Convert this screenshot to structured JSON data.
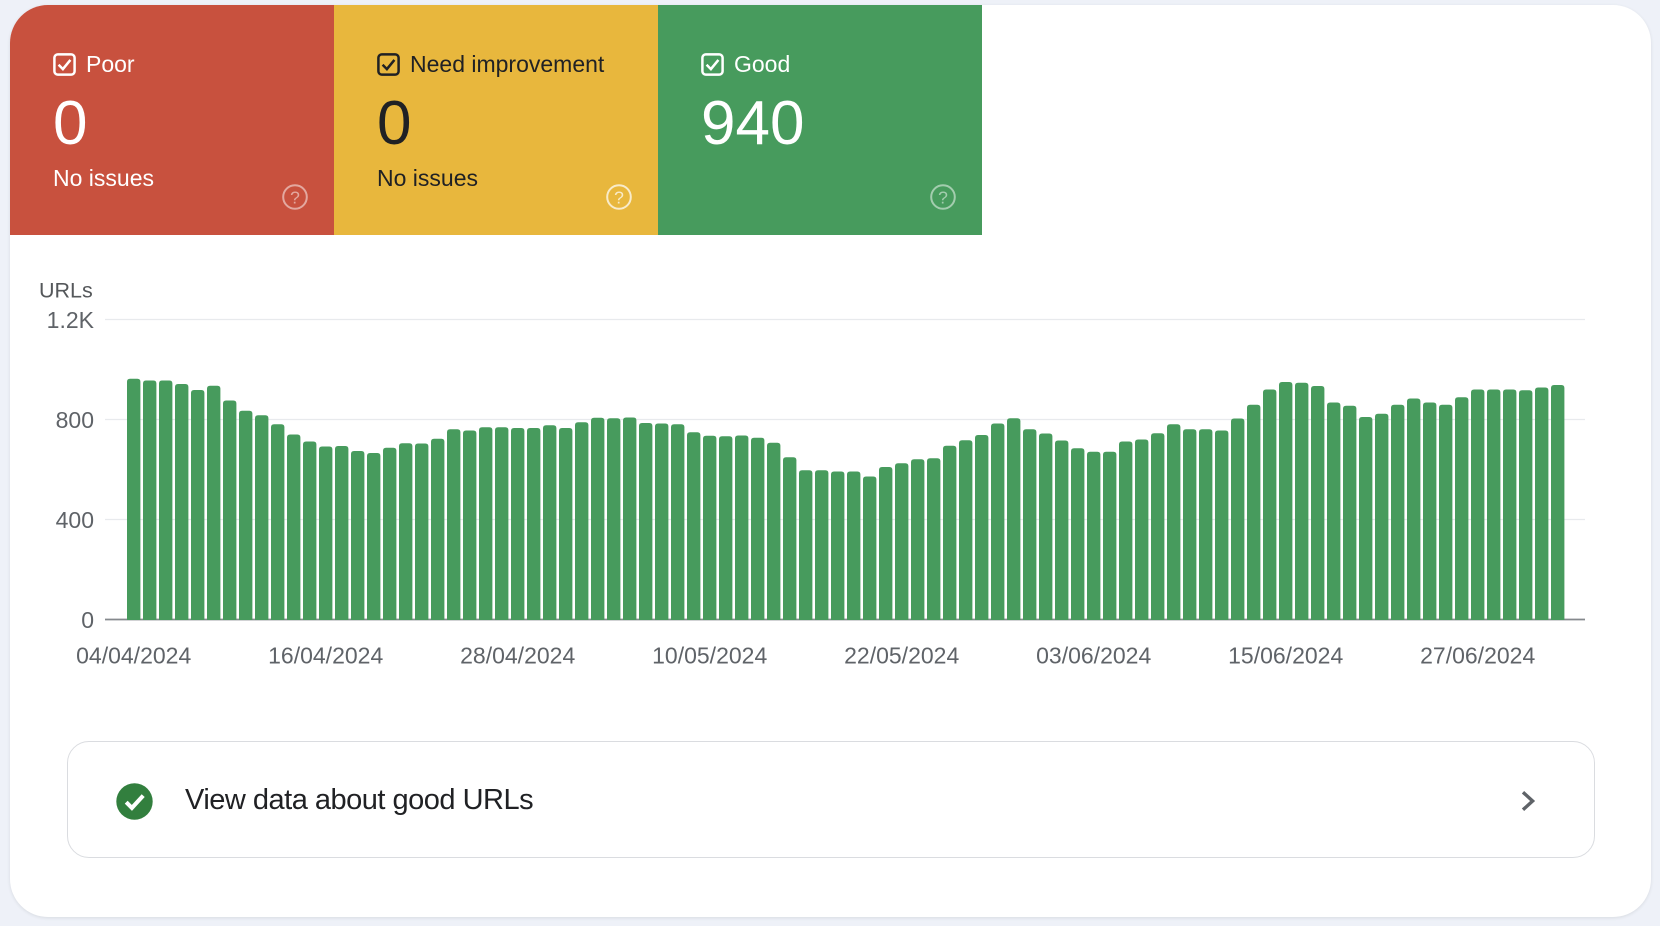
{
  "page": {
    "background": "#eef1f8",
    "card_background": "#ffffff"
  },
  "summary_cards": [
    {
      "id": "poor",
      "label": "Poor",
      "value": "0",
      "sub": "No issues",
      "checked": true,
      "color": "#c8513e",
      "text_color": "#ffffff",
      "help_opacity": 0.5
    },
    {
      "id": "need-improvement",
      "label": "Need improvement",
      "value": "0",
      "sub": "No issues",
      "checked": true,
      "color": "#e8b73d",
      "text_color": "#202124",
      "help_opacity": 0.72
    },
    {
      "id": "good",
      "label": "Good",
      "value": "940",
      "sub": "",
      "checked": true,
      "color": "#479b5d",
      "text_color": "#ffffff",
      "help_opacity": 0.5
    }
  ],
  "chart_data": {
    "type": "bar",
    "title": "",
    "ylabel": "URLs",
    "xlabel": "",
    "ylim": [
      0,
      1200
    ],
    "y_ticks": [
      {
        "label": "0",
        "value": 0
      },
      {
        "label": "400",
        "value": 400
      },
      {
        "label": "800",
        "value": 800
      },
      {
        "label": "1.2K",
        "value": 1200
      }
    ],
    "grid": true,
    "legend": "none",
    "bar_color": "#479b5d",
    "start_date": "04/04/2024",
    "x_tick_labels": [
      "04/04/2024",
      "16/04/2024",
      "28/04/2024",
      "10/05/2024",
      "22/05/2024",
      "03/06/2024",
      "15/06/2024",
      "27/06/2024"
    ],
    "x_tick_indices": [
      0,
      12,
      24,
      36,
      48,
      60,
      72,
      84
    ],
    "series_name": "Good URLs",
    "values": [
      965,
      958,
      958,
      944,
      920,
      937,
      878,
      837,
      819,
      783,
      742,
      714,
      694,
      696,
      676,
      668,
      689,
      707,
      706,
      725,
      763,
      758,
      771,
      771,
      768,
      768,
      779,
      768,
      791,
      809,
      807,
      810,
      788,
      786,
      783,
      751,
      737,
      735,
      738,
      729,
      709,
      651,
      599,
      599,
      594,
      594,
      574,
      612,
      627,
      643,
      647,
      697,
      719,
      740,
      786,
      807,
      763,
      746,
      718,
      687,
      673,
      673,
      714,
      722,
      747,
      783,
      763,
      763,
      758,
      806,
      861,
      922,
      952,
      949,
      936,
      870,
      857,
      812,
      825,
      861,
      886,
      870,
      861,
      891,
      922,
      922,
      922,
      919,
      930,
      940
    ]
  },
  "view_data_row": {
    "label": "View data about good URLs",
    "icon_color": "#327f3e",
    "chevron_color": "#5f6368",
    "border_color": "#dadce0"
  },
  "colors": {
    "axis_label": "#5f6368",
    "axis_line": "#85898d",
    "gridline": "#e8eaed",
    "ylabel_color": "#55585b"
  }
}
